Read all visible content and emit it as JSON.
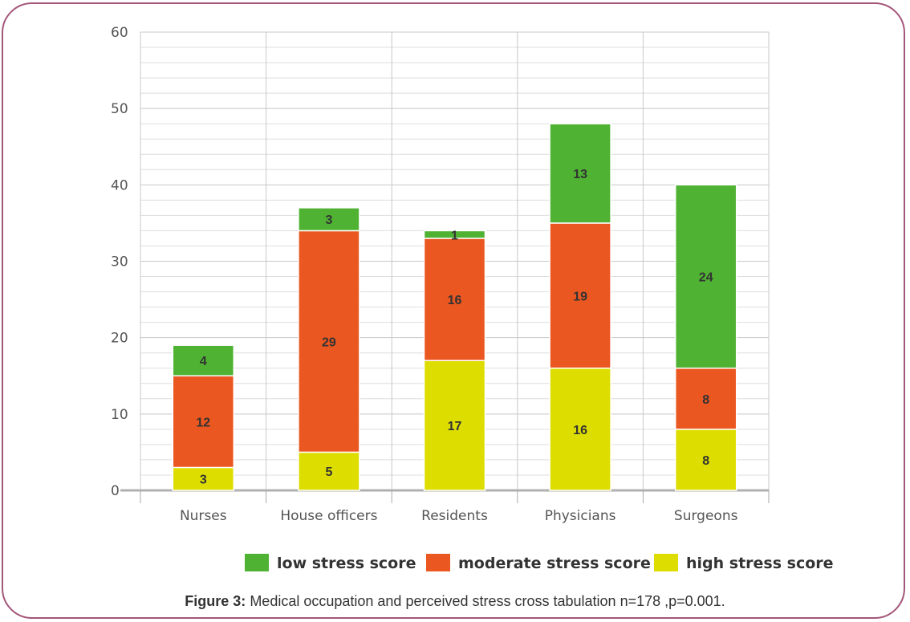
{
  "caption": {
    "label": "Figure 3:",
    "text": " Medical occupation and perceived stress cross tabulation n=178 ,p=0.001."
  },
  "chart_data": {
    "type": "bar",
    "stacked": true,
    "categories": [
      "Nurses",
      "House officers",
      "Residents",
      "Physicians",
      "Surgeons"
    ],
    "series": [
      {
        "name": "high stress score",
        "color": "#dddd00",
        "values": [
          3,
          5,
          17,
          16,
          8
        ]
      },
      {
        "name": "moderate stress score",
        "color": "#eb5720",
        "values": [
          12,
          29,
          16,
          19,
          8
        ]
      },
      {
        "name": "low stress score",
        "color": "#4fb233",
        "values": [
          4,
          3,
          1,
          13,
          24
        ]
      }
    ],
    "legend_order": [
      "low stress score",
      "moderate stress score",
      "high stress score"
    ],
    "legend_position": "bottom",
    "ylim": [
      0,
      60
    ],
    "yticks": [
      0,
      10,
      20,
      30,
      40,
      50,
      60
    ],
    "grid": true,
    "xlabel": "",
    "ylabel": "",
    "title": ""
  }
}
